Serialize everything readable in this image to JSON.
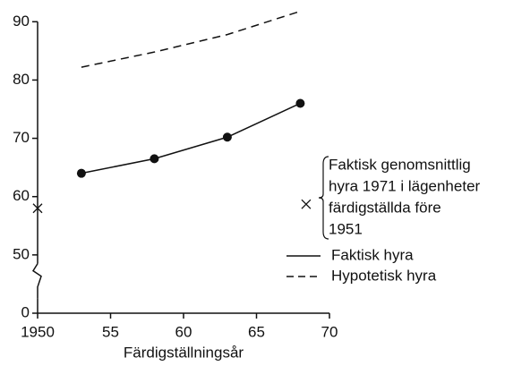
{
  "chart_data": {
    "type": "line",
    "x_label": "Färdigställningsår",
    "xlim": [
      1950,
      1970
    ],
    "xticks": [
      1950,
      {
        "value": 1955,
        "label": "55"
      },
      {
        "value": 1960,
        "label": "60"
      },
      {
        "value": 1965,
        "label": "65"
      },
      {
        "value": 1970,
        "label": "70"
      }
    ],
    "ylim": [
      0,
      92.5
    ],
    "yticks": [
      0,
      50,
      60,
      70,
      80,
      90
    ],
    "ybreak": [
      0,
      50
    ],
    "series": [
      {
        "name": "Faktisk hyra",
        "color": "#111111",
        "style": "solid",
        "marker": "dot",
        "x": [
          1953,
          1958,
          1963,
          1968
        ],
        "values": [
          64,
          66.5,
          70.2,
          76
        ]
      },
      {
        "name": "Hypotetisk hyra",
        "color": "#111111",
        "style": "dashed",
        "x": [
          1953,
          1958,
          1963,
          1968
        ],
        "values": [
          82.2,
          84.8,
          87.8,
          91.8
        ]
      },
      {
        "name": [
          "Faktisk genomsnittlig",
          "hyra 1971 i lägenheter",
          "färdigställda före",
          "1951"
        ],
        "color": "#111111",
        "style": "none",
        "marker": "x",
        "x": [
          1950,
          1968.4
        ],
        "values": [
          58,
          58.7
        ]
      }
    ]
  }
}
